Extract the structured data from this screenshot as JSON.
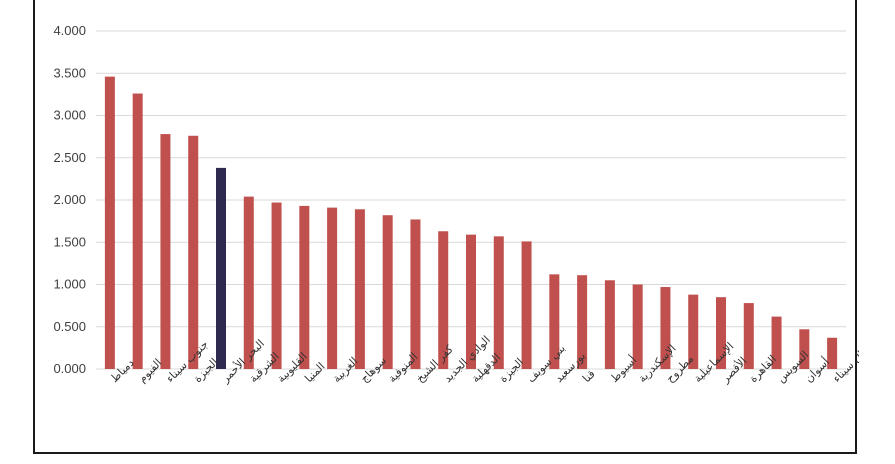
{
  "chart_data": {
    "type": "bar",
    "title": "",
    "xlabel": "",
    "ylabel": "",
    "ylim": [
      0,
      4
    ],
    "grid": true,
    "y_ticks": [
      "0.000",
      "0.500",
      "1.000",
      "1.500",
      "2.000",
      "2.500",
      "3.000",
      "3.500",
      "4.000"
    ],
    "categories": [
      "دمياط",
      "الفيوم",
      "جنوب سيناء",
      "الجيزة",
      "البحر الأحمر",
      "الشرقية",
      "القليوبية",
      "المنيا",
      "الغربية",
      "سوهاج",
      "المنوفية",
      "كفر الشيخ",
      "الوادي الجديد",
      "الدقهلية",
      "الجيزة",
      "بني سويف",
      "بورسعيد",
      "قنا",
      "أسيوط",
      "الإسكندرية",
      "مطروح",
      "الإسماعيلية",
      "الأقصر",
      "القاهرة",
      "السويس",
      "أسوان",
      "شمال سيناء"
    ],
    "values": [
      3.46,
      3.26,
      2.78,
      2.76,
      2.38,
      2.04,
      1.97,
      1.93,
      1.91,
      1.89,
      1.82,
      1.77,
      1.63,
      1.59,
      1.57,
      1.51,
      1.12,
      1.11,
      1.05,
      1.0,
      0.97,
      0.88,
      0.85,
      0.78,
      0.62,
      0.47,
      0.37
    ],
    "highlight_index": 4,
    "colors": {
      "bar": "#c0504d",
      "highlight": "#2e2a4f",
      "grid": "#d9d9d9",
      "axis_text": "#404040"
    }
  }
}
